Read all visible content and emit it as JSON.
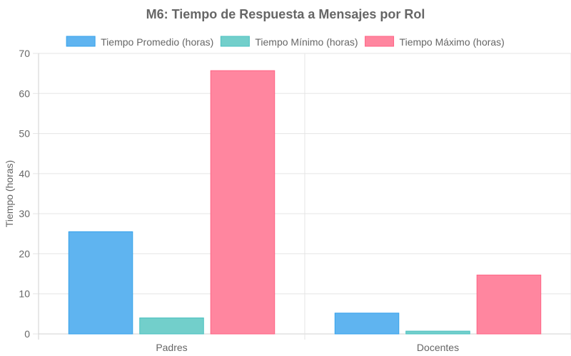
{
  "chart_data": {
    "type": "bar",
    "title": "M6: Tiempo de Respuesta a Mensajes por Rol",
    "xlabel": "",
    "ylabel": "Tiempo (horas)",
    "ylim": [
      0,
      70
    ],
    "yticks": [
      0,
      10,
      20,
      30,
      40,
      50,
      60,
      70
    ],
    "categories": [
      "Padres",
      "Docentes"
    ],
    "series": [
      {
        "name": "Tiempo Promedio (horas)",
        "values": [
          25.5,
          5.2
        ],
        "color": "#5fb4f0",
        "border": "#36a2eb"
      },
      {
        "name": "Tiempo Mínimo (horas)",
        "values": [
          4.0,
          0.7
        ],
        "color": "#72cfcb",
        "border": "#4bc0c0"
      },
      {
        "name": "Tiempo Máximo (horas)",
        "values": [
          65.7,
          14.7
        ],
        "color": "#ff869f",
        "border": "#ff6384"
      }
    ],
    "grid": true,
    "legend_position": "top"
  }
}
